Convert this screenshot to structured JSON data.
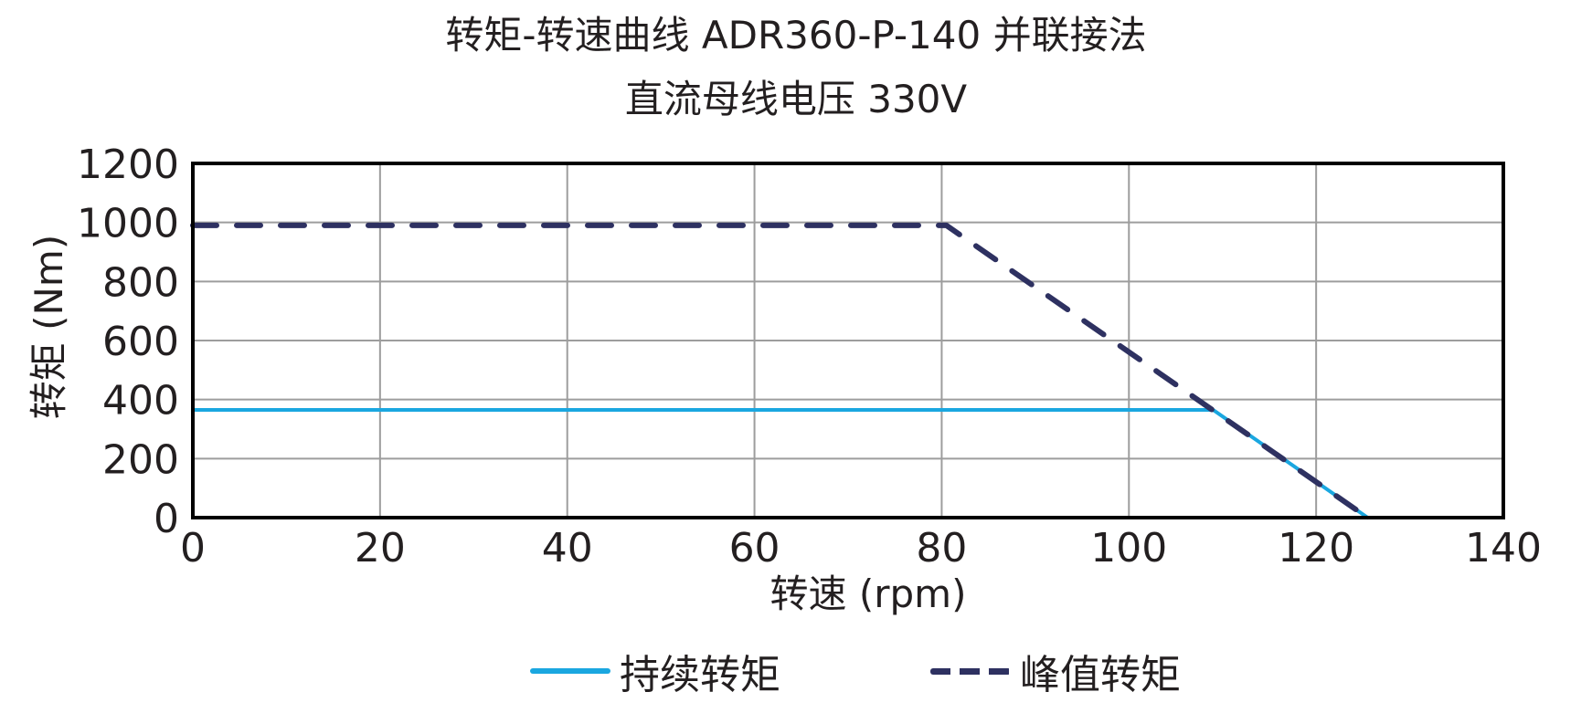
{
  "header": {
    "title_line1": "转矩-转速曲线 ADR360-P-140 并联接法",
    "title_line2": "直流母线电压 330V"
  },
  "axes": {
    "xlabel": "转速 (rpm)",
    "ylabel": "转矩 (Nm)",
    "xticks": [
      "0",
      "20",
      "40",
      "60",
      "80",
      "100",
      "120",
      "140"
    ],
    "yticks": [
      "0",
      "200",
      "400",
      "600",
      "800",
      "1000",
      "1200"
    ]
  },
  "legend": {
    "continuous_label": "持续转矩",
    "peak_label": "峰值转矩"
  },
  "colors": {
    "continuous": "#1aa7e0",
    "peak": "#2e3161",
    "grid": "#9d9d9d",
    "frame": "#000000"
  },
  "chart_data": {
    "type": "line",
    "title": "转矩-转速曲线 ADR360-P-140 并联接法",
    "subtitle": "直流母线电压 330V",
    "xlabel": "转速 (rpm)",
    "ylabel": "转矩 (Nm)",
    "xlim": [
      0,
      140
    ],
    "ylim": [
      0,
      1200
    ],
    "xticks": [
      0,
      20,
      40,
      60,
      80,
      100,
      120,
      140
    ],
    "yticks": [
      0,
      200,
      400,
      600,
      800,
      1000,
      1200
    ],
    "grid": true,
    "legend_position": "bottom",
    "series": [
      {
        "name": "持续转矩",
        "style": "solid",
        "color": "#1aa7e0",
        "x": [
          0,
          109,
          125.5
        ],
        "y": [
          365,
          365,
          0
        ]
      },
      {
        "name": "峰值转矩",
        "style": "dashed",
        "color": "#2e3161",
        "x": [
          0,
          80.5,
          125.5
        ],
        "y": [
          990,
          990,
          0
        ]
      }
    ]
  }
}
